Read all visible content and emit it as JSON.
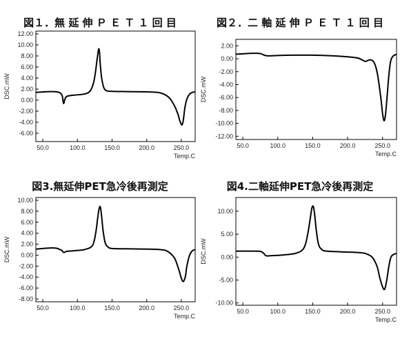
{
  "chart_data": [
    {
      "type": "line",
      "title": "図１．無 延 伸 Ｐ Ｅ Ｔ １ 回 目",
      "xlabel": "Temp.C",
      "ylabel": "DSC.mW",
      "xlim": [
        40,
        270
      ],
      "ylim": [
        -7.5,
        12.5
      ],
      "xticks": [
        "50.0",
        "100.0",
        "150.0",
        "200.0",
        "250.0"
      ],
      "xtick_values": [
        50,
        100,
        150,
        200,
        250
      ],
      "yticks": [
        "12.00",
        "10.00",
        "8.00",
        "6.00",
        "4.00",
        "2.00",
        "0.00",
        "-2.00",
        "-4.00",
        "-6.00"
      ],
      "ytick_values": [
        12,
        10,
        8,
        6,
        4,
        2,
        0,
        -2,
        -4,
        -6
      ],
      "series": [
        {
          "x": [
            40,
            60,
            70,
            75,
            78,
            80,
            82,
            85,
            95,
            110,
            118,
            123,
            126,
            128,
            130,
            131,
            132,
            133,
            135,
            138,
            142,
            150,
            170,
            200,
            220,
            232,
            240,
            245,
            248,
            251,
            253,
            255,
            258,
            262,
            266,
            270
          ],
          "y": [
            1.4,
            1.55,
            1.5,
            1.3,
            0.8,
            -0.6,
            0.2,
            0.7,
            0.9,
            1.1,
            1.6,
            3.0,
            5.0,
            7.0,
            8.8,
            9.3,
            8.5,
            6.5,
            4.0,
            2.3,
            1.7,
            1.6,
            1.55,
            1.5,
            1.3,
            0.5,
            -1.0,
            -2.5,
            -3.8,
            -4.5,
            -3.5,
            -1.5,
            0.2,
            1.1,
            1.4,
            1.5
          ]
        }
      ]
    },
    {
      "type": "line",
      "title": "図２．二 軸 延 伸 Ｐ Ｅ Ｔ １ 回 目",
      "xlabel": "Temp.C",
      "ylabel": "DSC.mW",
      "xlim": [
        40,
        270
      ],
      "ylim": [
        -12.5,
        3.0
      ],
      "xticks": [
        "50.0",
        "100.0",
        "150.0",
        "200.0",
        "250.0"
      ],
      "xtick_values": [
        50,
        100,
        150,
        200,
        250
      ],
      "yticks": [
        "2.00",
        "0.00",
        "-2.00",
        "-4.00",
        "-6.00",
        "-8.00",
        "-10.00",
        "-12.00"
      ],
      "ytick_values": [
        2,
        0,
        -2,
        -4,
        -6,
        -8,
        -10,
        -12
      ],
      "series": [
        {
          "x": [
            40,
            55,
            65,
            75,
            82,
            88,
            100,
            120,
            150,
            180,
            200,
            215,
            225,
            230,
            234,
            238,
            242,
            245,
            248,
            250,
            252,
            254,
            256,
            258,
            260,
            262,
            265,
            270
          ],
          "y": [
            0.7,
            0.8,
            0.85,
            0.8,
            0.5,
            0.45,
            0.5,
            0.55,
            0.55,
            0.45,
            0.3,
            0.1,
            -0.4,
            -0.2,
            -0.2,
            -0.6,
            -2.0,
            -4.0,
            -6.5,
            -8.5,
            -9.6,
            -8.8,
            -6.5,
            -3.8,
            -1.5,
            -0.2,
            0.4,
            0.7
          ]
        }
      ]
    },
    {
      "type": "line",
      "title": "図3.無延伸PET急冷後再測定",
      "xlabel": "Temp.C",
      "ylabel": "DSC.mW",
      "xlim": [
        40,
        270
      ],
      "ylim": [
        -8.5,
        10.5
      ],
      "xticks": [
        "50.0",
        "100.0",
        "150.0",
        "200.0",
        "250.0"
      ],
      "xtick_values": [
        50,
        100,
        150,
        200,
        250
      ],
      "yticks": [
        "10.00",
        "8.00",
        "6.00",
        "4.00",
        "2.00",
        "0.00",
        "-2.00",
        "-4.00",
        "-6.00",
        "-8.00"
      ],
      "ytick_values": [
        10,
        8,
        6,
        4,
        2,
        0,
        -2,
        -4,
        -6,
        -8
      ],
      "series": [
        {
          "x": [
            40,
            60,
            70,
            75,
            78,
            80,
            82,
            85,
            95,
            110,
            120,
            124,
            127,
            129,
            131,
            133,
            135,
            137,
            140,
            144,
            150,
            170,
            200,
            220,
            230,
            240,
            246,
            250,
            253,
            256,
            258,
            262,
            266,
            270
          ],
          "y": [
            1.1,
            1.3,
            1.25,
            1.0,
            0.8,
            0.5,
            0.55,
            0.7,
            0.8,
            1.0,
            1.5,
            2.5,
            4.5,
            6.5,
            8.3,
            8.8,
            7.0,
            4.5,
            2.3,
            1.5,
            1.2,
            1.15,
            1.1,
            1.0,
            0.7,
            -0.5,
            -2.5,
            -4.2,
            -4.8,
            -3.8,
            -2.0,
            0.0,
            0.8,
            1.0
          ]
        }
      ]
    },
    {
      "type": "line",
      "title": "図4.二軸延伸PET急冷後再測定",
      "xlabel": "Temp.C",
      "ylabel": "DSC.mW",
      "xlim": [
        40,
        270
      ],
      "ylim": [
        -10.5,
        13.0
      ],
      "xticks": [
        "50.0",
        "100.0",
        "150.0",
        "200.0",
        "250.0"
      ],
      "xtick_values": [
        50,
        100,
        150,
        200,
        250
      ],
      "yticks": [
        "10.00",
        "5.00",
        "0.00",
        "-5.00",
        "-10.00"
      ],
      "ytick_values": [
        10,
        5,
        0,
        -5,
        -10
      ],
      "series": [
        {
          "x": [
            40,
            60,
            75,
            80,
            83,
            90,
            110,
            125,
            135,
            140,
            144,
            147,
            149,
            151,
            153,
            155,
            158,
            162,
            170,
            200,
            215,
            225,
            235,
            242,
            246,
            250,
            253,
            256,
            259,
            262,
            266,
            270
          ],
          "y": [
            1.3,
            1.3,
            1.25,
            0.8,
            0.3,
            0.3,
            0.5,
            0.8,
            1.5,
            3.0,
            6.0,
            9.0,
            10.8,
            11.0,
            9.0,
            6.0,
            3.0,
            1.8,
            1.3,
            1.1,
            1.0,
            0.8,
            0.0,
            -2.0,
            -4.5,
            -6.5,
            -7.0,
            -5.0,
            -2.0,
            0.0,
            0.6,
            0.8
          ]
        }
      ]
    }
  ]
}
